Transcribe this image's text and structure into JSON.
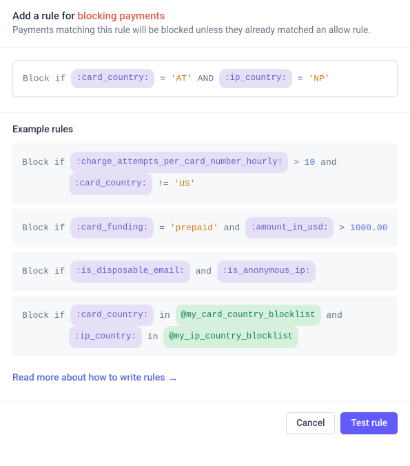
{
  "header": {
    "title_prefix": "Add a rule for ",
    "title_highlight": "blocking payments",
    "subtitle": "Payments matching this rule will be blocked unless they already matched an allow rule."
  },
  "editor": {
    "keyword": "Block if",
    "field1": ":card_country:",
    "op1": "=",
    "val1": "'AT'",
    "conj": "AND",
    "field2": ":ip_country:",
    "op2": "=",
    "val2": "'NP'"
  },
  "examples": {
    "heading": "Example rules",
    "rules": [
      {
        "kw": "Block if",
        "parts1": {
          "field": ":charge_attempts_per_card_number_hourly:",
          "op": ">",
          "num": "10",
          "conj": "and"
        },
        "parts2": {
          "field": ":card_country:",
          "op": "!=",
          "str": "'US'"
        }
      },
      {
        "kw": "Block if",
        "field1": ":card_funding:",
        "op1": "=",
        "str1": "'prepaid'",
        "conj": "and",
        "field2": ":amount_in_usd:",
        "op2": ">",
        "num2": "1000.00"
      },
      {
        "kw": "Block if",
        "field1": ":is_disposable_email:",
        "conj": "and",
        "field2": ":is_anonymous_ip:"
      },
      {
        "kw": "Block if",
        "field1": ":card_country:",
        "op1": "in",
        "list1": "@my_card_country_blocklist",
        "conj": "and",
        "field2": ":ip_country:",
        "op2": "in",
        "list2": "@my_ip_country_blocklist"
      }
    ]
  },
  "link": {
    "text": "Read more about how to write rules"
  },
  "footer": {
    "cancel": "Cancel",
    "test": "Test rule"
  }
}
